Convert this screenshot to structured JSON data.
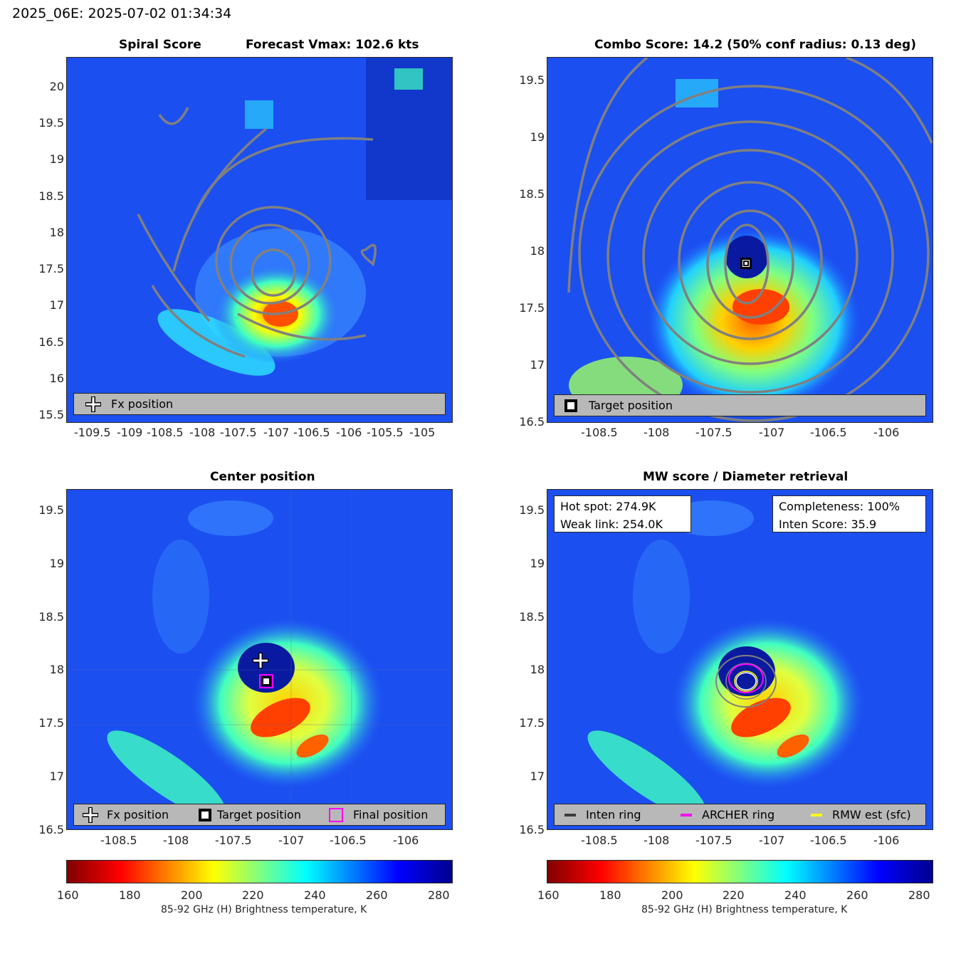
{
  "suptitle": "2025_06E: 2025-07-02 01:34:34",
  "panels": {
    "spiral": {
      "title_left": "Spiral Score",
      "title_right": "Forecast Vmax: 102.6 kts",
      "x_ticks": [
        "-109.5",
        "-109",
        "-108.5",
        "-108",
        "-107.5",
        "-107",
        "-106.5",
        "-106",
        "-105.5",
        "-105"
      ],
      "y_ticks": [
        "20",
        "19.5",
        "19",
        "18.5",
        "18",
        "17.5",
        "17",
        "16.5",
        "16",
        "15.5"
      ],
      "legend": {
        "fx": "Fx position"
      }
    },
    "combo": {
      "title": "Combo Score: 14.2  (50% conf radius: 0.13 deg)",
      "x_ticks": [
        "-108.5",
        "-108",
        "-107.5",
        "-107",
        "-106.5",
        "-106"
      ],
      "y_ticks": [
        "19.5",
        "19",
        "18.5",
        "18",
        "17.5",
        "17",
        "16.5"
      ],
      "legend": {
        "target": "Target position"
      }
    },
    "center": {
      "title": "Center position",
      "x_ticks": [
        "-108.5",
        "-108",
        "-107.5",
        "-107",
        "-106.5",
        "-106"
      ],
      "y_ticks": [
        "19.5",
        "19",
        "18.5",
        "18",
        "17.5",
        "17",
        "16.5"
      ],
      "legend": {
        "fx": "Fx position",
        "target": "Target position",
        "final": "Final position"
      }
    },
    "mw": {
      "title": "MW score / Diameter retrieval",
      "x_ticks": [
        "-108.5",
        "-108",
        "-107.5",
        "-107",
        "-106.5",
        "-106"
      ],
      "y_ticks": [
        "19.5",
        "19",
        "18.5",
        "18",
        "17.5",
        "17",
        "16.5"
      ],
      "info_left": {
        "hot_spot": "Hot spot: 274.9K",
        "weak_link": "Weak link: 254.0K"
      },
      "info_right": {
        "completeness": "Completeness: 100%",
        "inten_score": "Inten Score: 35.9"
      },
      "legend": {
        "inten": "Inten ring",
        "archer": "ARCHER ring",
        "rmw": "RMW est (sfc)"
      }
    }
  },
  "colorbar": {
    "ticks": [
      "160",
      "180",
      "200",
      "220",
      "240",
      "260",
      "280"
    ],
    "label": "85-92 GHz (H) Brightness temperature, K"
  },
  "colors": {
    "inten_ring": "#3c3c3c",
    "archer_ring": "#ff00ff",
    "rmw": "#ffff00",
    "contour": "#808080"
  },
  "chart_data": [
    {
      "type": "heatmap",
      "title": "Spiral Score",
      "annotation": "Forecast Vmax: 102.6 kts",
      "xlim": [
        -109.85,
        -104.6
      ],
      "ylim": [
        15.4,
        20.4
      ],
      "markers": [
        {
          "name": "Fx position",
          "x": -107.25,
          "y": 18.08
        }
      ]
    },
    {
      "type": "heatmap",
      "title": "Combo Score: 14.2  (50% conf radius: 0.13 deg)",
      "xlim": [
        -109.0,
        -105.6
      ],
      "ylim": [
        16.5,
        19.7
      ],
      "markers": [
        {
          "name": "Target position",
          "x": -107.22,
          "y": 17.9
        }
      ]
    },
    {
      "type": "heatmap",
      "title": "Center position",
      "xlim": [
        -109.0,
        -105.6
      ],
      "ylim": [
        16.5,
        19.7
      ],
      "colorbar_range": [
        160,
        285
      ],
      "markers": [
        {
          "name": "Fx position",
          "x": -107.27,
          "y": 18.1
        },
        {
          "name": "Target position",
          "x": -107.22,
          "y": 17.9
        },
        {
          "name": "Final position",
          "x": -107.22,
          "y": 17.9
        }
      ]
    },
    {
      "type": "heatmap",
      "title": "MW score / Diameter retrieval",
      "xlim": [
        -109.0,
        -105.6
      ],
      "ylim": [
        16.5,
        19.7
      ],
      "colorbar_range": [
        160,
        285
      ],
      "hot_spot_K": 274.9,
      "weak_link_K": 254.0,
      "completeness_pct": 100,
      "inten_score": 35.9,
      "rings_center": {
        "x": -107.22,
        "y": 17.9
      }
    }
  ]
}
